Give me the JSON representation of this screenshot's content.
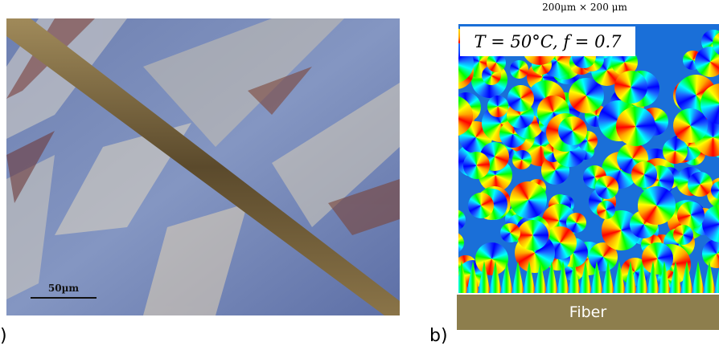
{
  "left_panel": {
    "label": ")",
    "scale_bar": "50µm"
  },
  "right_panel": {
    "label": "b)",
    "title": "200μm × 200 μm",
    "condition": "T = 50°C, f = 0.7",
    "substrate": "Fiber"
  }
}
